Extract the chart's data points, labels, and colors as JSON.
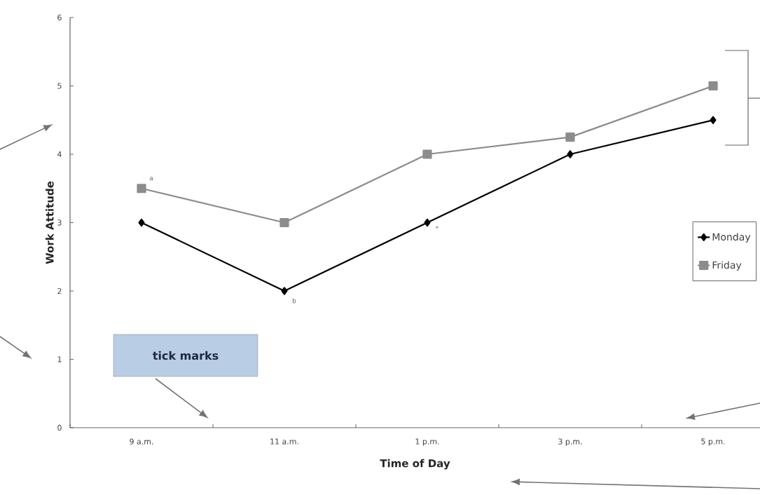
{
  "chart_data": {
    "type": "line",
    "xlabel": "Time of Day",
    "ylabel": "Work Attitude",
    "categories": [
      "9 a.m.",
      "11 a.m.",
      "1 p.m.",
      "3 p.m.",
      "5 p.m."
    ],
    "series": [
      {
        "name": "Monday",
        "color": "#000000",
        "marker": "diamond",
        "values": [
          3,
          2,
          3,
          4,
          4.5
        ]
      },
      {
        "name": "Friday",
        "color": "#8c8c8c",
        "marker": "square",
        "values": [
          3.5,
          3,
          4,
          4.25,
          5
        ]
      }
    ],
    "ylim": [
      0,
      6
    ],
    "yticks": [
      0,
      1,
      2,
      3,
      4,
      5,
      6
    ],
    "grid": false,
    "legend": "right",
    "line_style": "solid",
    "annotations": [
      {
        "text": "a",
        "x": "9 a.m.",
        "y": 3.5
      },
      {
        "text": "b",
        "x": "11 a.m.",
        "y": 2
      },
      {
        "text": "*",
        "x": "1 p.m.",
        "y": 3
      },
      "tick marks"
    ]
  }
}
